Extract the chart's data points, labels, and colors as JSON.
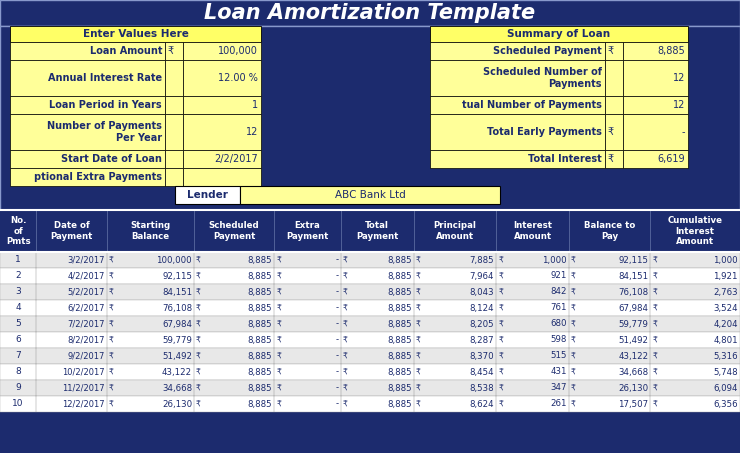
{
  "title": "Loan Amortization Template",
  "bg_dark": "#1c2b6e",
  "bg_yellow_light": "#ffff99",
  "bg_yellow_header": "#ffff66",
  "bg_white": "#ffffff",
  "text_dark": "#1c2b6e",
  "text_white": "#ffffff",
  "border_dark": "#000000",
  "left_header": "Enter Values Here",
  "right_header": "Summary of Loan",
  "lender_label": "Lender",
  "lender_value": "ABC Bank Ltd",
  "col_headers": [
    "No.\nof\nPmts",
    "Date of\nPayment",
    "Starting\nBalance",
    "Scheduled\nPayment",
    "Extra\nPayment",
    "Total\nPayment",
    "Principal\nAmount",
    "Interest\nAmount",
    "Balance to\nPay",
    "Cumulative\nInterest\nAmount"
  ],
  "table_rows": [
    [
      "1",
      "3/2/2017",
      "₹",
      "100,000",
      "₹",
      "8,885",
      "₹",
      "-",
      "₹",
      "8,885",
      "₹",
      "7,885",
      "₹",
      "1,000",
      "₹",
      "92,115",
      "₹",
      "1,000"
    ],
    [
      "2",
      "4/2/2017",
      "₹",
      "92,115",
      "₹",
      "8,885",
      "₹",
      "-",
      "₹",
      "8,885",
      "₹",
      "7,964",
      "₹",
      "921",
      "₹",
      "84,151",
      "₹",
      "1,921"
    ],
    [
      "3",
      "5/2/2017",
      "₹",
      "84,151",
      "₹",
      "8,885",
      "₹",
      "-",
      "₹",
      "8,885",
      "₹",
      "8,043",
      "₹",
      "842",
      "₹",
      "76,108",
      "₹",
      "2,763"
    ],
    [
      "4",
      "6/2/2017",
      "₹",
      "76,108",
      "₹",
      "8,885",
      "₹",
      "-",
      "₹",
      "8,885",
      "₹",
      "8,124",
      "₹",
      "761",
      "₹",
      "67,984",
      "₹",
      "3,524"
    ],
    [
      "5",
      "7/2/2017",
      "₹",
      "67,984",
      "₹",
      "8,885",
      "₹",
      "-",
      "₹",
      "8,885",
      "₹",
      "8,205",
      "₹",
      "680",
      "₹",
      "59,779",
      "₹",
      "4,204"
    ],
    [
      "6",
      "8/2/2017",
      "₹",
      "59,779",
      "₹",
      "8,885",
      "₹",
      "-",
      "₹",
      "8,885",
      "₹",
      "8,287",
      "₹",
      "598",
      "₹",
      "51,492",
      "₹",
      "4,801"
    ],
    [
      "7",
      "9/2/2017",
      "₹",
      "51,492",
      "₹",
      "8,885",
      "₹",
      "-",
      "₹",
      "8,885",
      "₹",
      "8,370",
      "₹",
      "515",
      "₹",
      "43,122",
      "₹",
      "5,316"
    ],
    [
      "8",
      "10/2/2017",
      "₹",
      "43,122",
      "₹",
      "8,885",
      "₹",
      "-",
      "₹",
      "8,885",
      "₹",
      "8,454",
      "₹",
      "431",
      "₹",
      "34,668",
      "₹",
      "5,748"
    ],
    [
      "9",
      "11/2/2017",
      "₹",
      "34,668",
      "₹",
      "8,885",
      "₹",
      "-",
      "₹",
      "8,885",
      "₹",
      "8,538",
      "₹",
      "347",
      "₹",
      "26,130",
      "₹",
      "6,094"
    ],
    [
      "10",
      "12/2/2017",
      "₹",
      "26,130",
      "₹",
      "8,885",
      "₹",
      "-",
      "₹",
      "8,885",
      "₹",
      "8,624",
      "₹",
      "261",
      "₹",
      "17,507",
      "₹",
      "6,356"
    ]
  ]
}
